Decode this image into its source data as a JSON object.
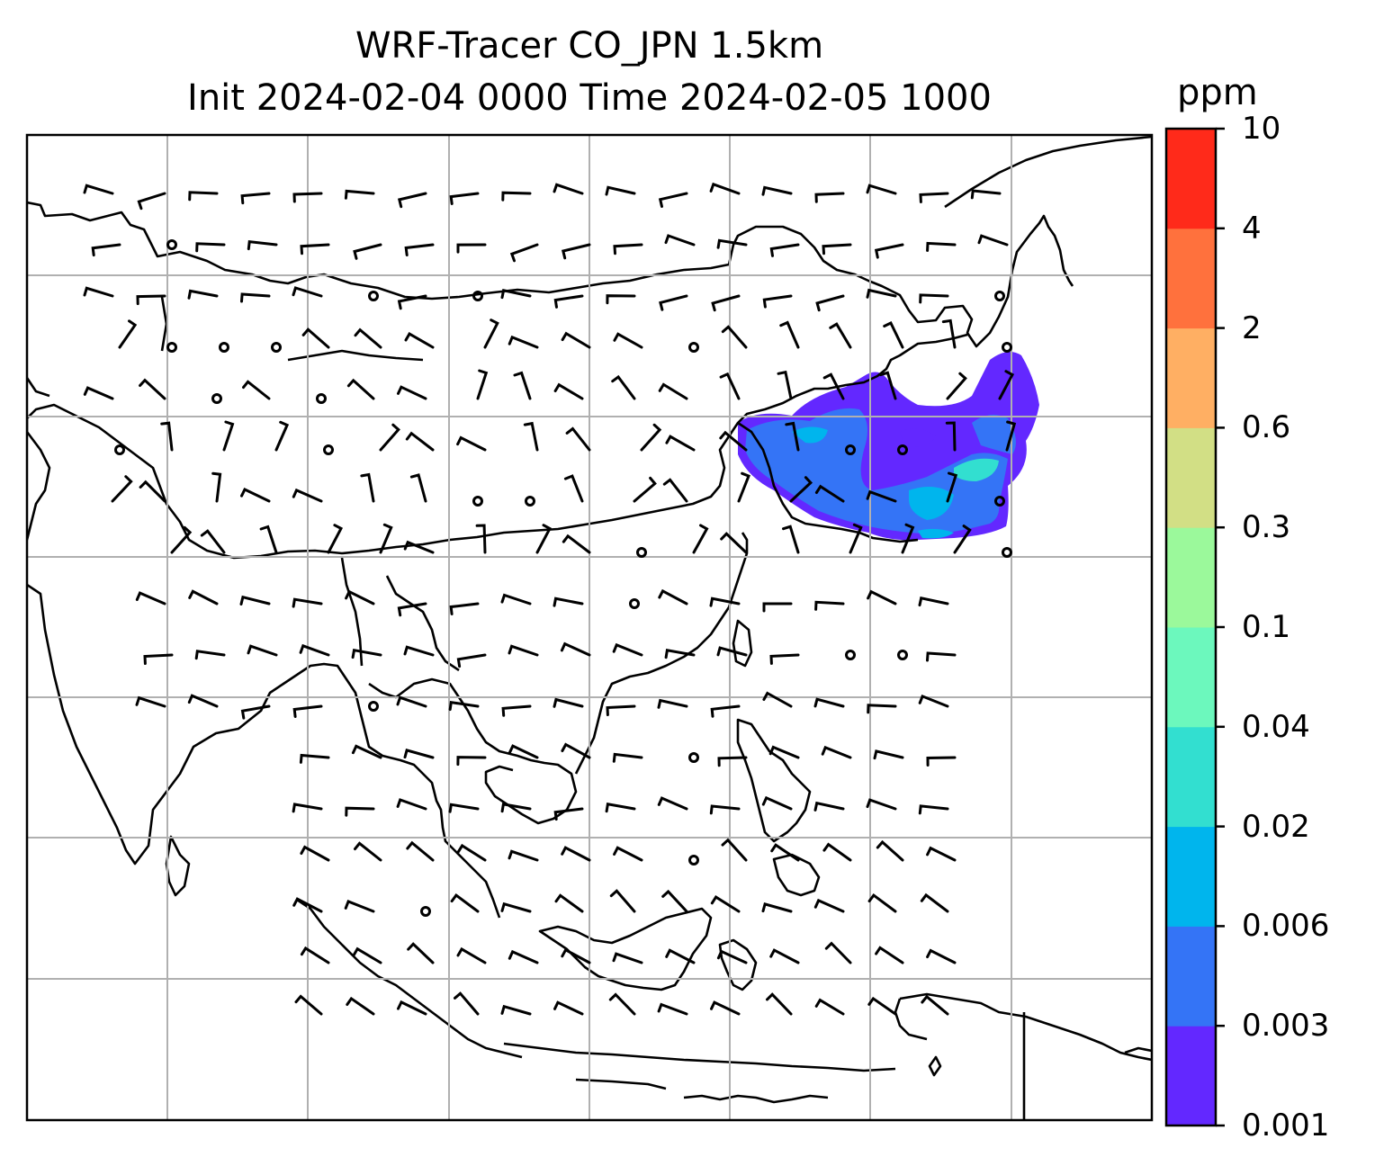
{
  "title": {
    "line1": "WRF-Tracer CO_JPN 1.5km",
    "line2": "Init 2024-02-04 0000 Time 2024-02-05 1000"
  },
  "colorbar": {
    "unit": "ppm",
    "labels": [
      "0.001",
      "0.003",
      "0.006",
      "0.02",
      "0.04",
      "0.1",
      "0.3",
      "0.6",
      "2",
      "4",
      "10"
    ],
    "colors": [
      "#6328ff",
      "#3474f6",
      "#00b5ed",
      "#32dfd0",
      "#6cf8bd",
      "#9bf99b",
      "#d2df85",
      "#ffaf63",
      "#ff713d",
      "#ff2a1a"
    ]
  },
  "map": {
    "gridlines": true,
    "gridline_color": "#b0b0b0",
    "coastline_color": "#000000",
    "wind_barb_color": "#000000",
    "plume_region": "Japan",
    "plume_max_level": "0.04"
  }
}
